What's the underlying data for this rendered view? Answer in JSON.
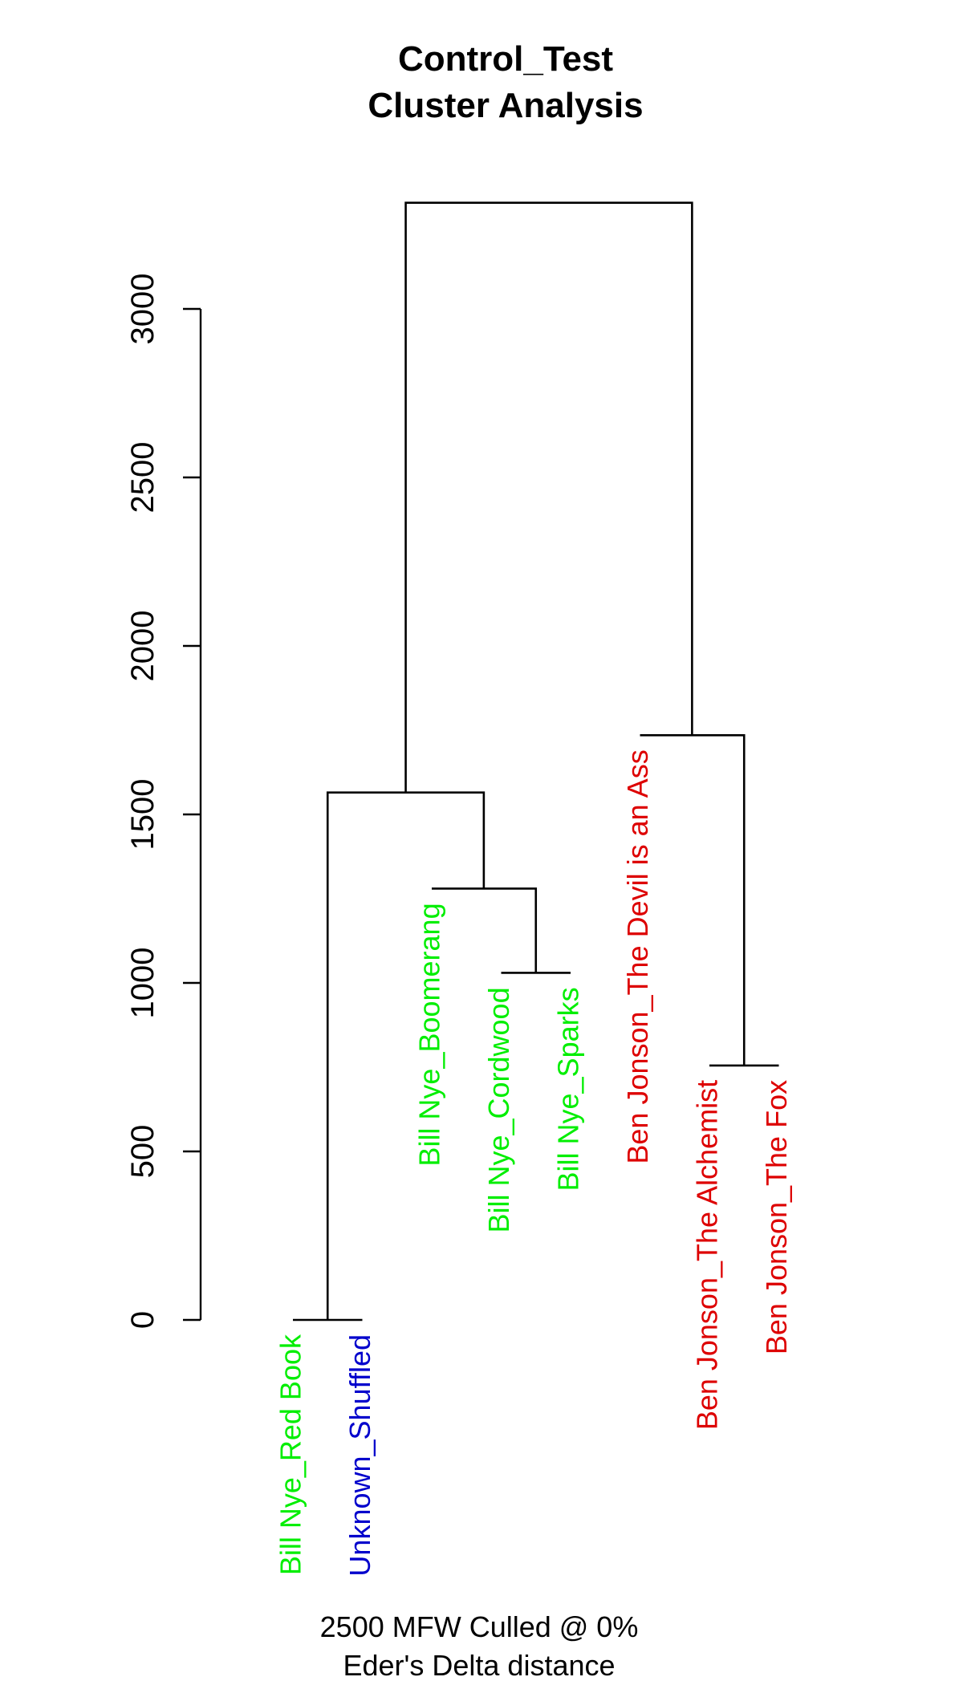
{
  "chart_data": {
    "type": "dendrogram",
    "title_lines": [
      "Control_Test",
      "Cluster Analysis"
    ],
    "caption_lines": [
      "2500 MFW  Culled @ 0%",
      "Eder's Delta distance"
    ],
    "yaxis": {
      "ticks": [
        0,
        500,
        1000,
        1500,
        2000,
        2500,
        3000
      ],
      "range": [
        0,
        3300
      ]
    },
    "colors": {
      "bill_nye": "#00ee00",
      "unknown": "#0000cc",
      "ben_jonson": "#dd0000"
    },
    "leaves": [
      {
        "label": "Bill Nye_Red Book",
        "color": "#00ee00",
        "height": 0
      },
      {
        "label": "Unknown_Shuffled",
        "color": "#0000cc",
        "height": 0
      },
      {
        "label": "Bill Nye_Boomerang",
        "color": "#00ee00",
        "height": 1280
      },
      {
        "label": "Bill Nye_Cordwood",
        "color": "#00ee00",
        "height": 1030
      },
      {
        "label": "Bill Nye_Sparks",
        "color": "#00ee00",
        "height": 1030
      },
      {
        "label": "Ben Jonson_The Devil is an Ass",
        "color": "#dd0000",
        "height": 1735
      },
      {
        "label": "Ben Jonson_The Alchemist",
        "color": "#dd0000",
        "height": 755
      },
      {
        "label": "Ben Jonson_The Fox",
        "color": "#dd0000",
        "height": 755
      }
    ],
    "merges": [
      {
        "left": "L0",
        "right": "L1",
        "height": 0
      },
      {
        "left": "L3",
        "right": "L4",
        "height": 1030
      },
      {
        "left": "L2",
        "right": "M1",
        "height": 1280
      },
      {
        "left": "M0",
        "right": "M2",
        "height": 1565
      },
      {
        "left": "L6",
        "right": "L7",
        "height": 755
      },
      {
        "left": "L5",
        "right": "M4",
        "height": 1735
      },
      {
        "left": "M3",
        "right": "M5",
        "height": 3315
      }
    ]
  }
}
